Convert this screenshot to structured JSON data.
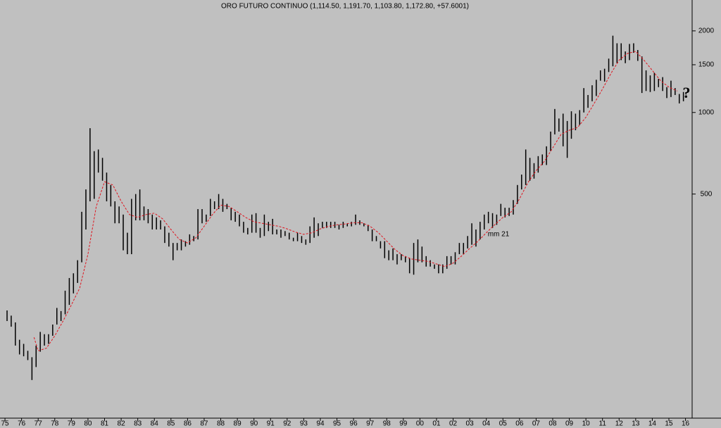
{
  "chart_data": {
    "type": "hilo",
    "title": "ORO FUTURO CONTINUO (1,114.50, 1,191.70, 1,103.80, 1,172.80, +57.6001)",
    "color": "#000000",
    "log_scale": true,
    "x": [
      1975.125,
      1975.375,
      1975.625,
      1975.875,
      1976.125,
      1976.375,
      1976.625,
      1976.875,
      1977.125,
      1977.375,
      1977.625,
      1977.875,
      1978.125,
      1978.375,
      1978.625,
      1978.875,
      1979.125,
      1979.375,
      1979.625,
      1979.875,
      1980.125,
      1980.375,
      1980.625,
      1980.875,
      1981.125,
      1981.375,
      1981.625,
      1981.875,
      1982.125,
      1982.375,
      1982.625,
      1982.875,
      1983.125,
      1983.375,
      1983.625,
      1983.875,
      1984.125,
      1984.375,
      1984.625,
      1984.875,
      1985.125,
      1985.375,
      1985.625,
      1985.875,
      1986.125,
      1986.375,
      1986.625,
      1986.875,
      1987.125,
      1987.375,
      1987.625,
      1987.875,
      1988.125,
      1988.375,
      1988.625,
      1988.875,
      1989.125,
      1989.375,
      1989.625,
      1989.875,
      1990.125,
      1990.375,
      1990.625,
      1990.875,
      1991.125,
      1991.375,
      1991.625,
      1991.875,
      1992.125,
      1992.375,
      1992.625,
      1992.875,
      1993.125,
      1993.375,
      1993.625,
      1993.875,
      1994.125,
      1994.375,
      1994.625,
      1994.875,
      1995.125,
      1995.375,
      1995.625,
      1995.875,
      1996.125,
      1996.375,
      1996.625,
      1996.875,
      1997.125,
      1997.375,
      1997.625,
      1997.875,
      1998.125,
      1998.375,
      1998.625,
      1998.875,
      1999.125,
      1999.375,
      1999.625,
      1999.875,
      2000.125,
      2000.375,
      2000.625,
      2000.875,
      2001.125,
      2001.375,
      2001.625,
      2001.875,
      2002.125,
      2002.375,
      2002.625,
      2002.875,
      2003.125,
      2003.375,
      2003.625,
      2003.875,
      2004.125,
      2004.375,
      2004.625,
      2004.875,
      2005.125,
      2005.375,
      2005.625,
      2005.875,
      2006.125,
      2006.375,
      2006.625,
      2006.875,
      2007.125,
      2007.375,
      2007.625,
      2007.875,
      2008.125,
      2008.375,
      2008.625,
      2008.875,
      2009.125,
      2009.375,
      2009.625,
      2009.875,
      2010.125,
      2010.375,
      2010.625,
      2010.875,
      2011.125,
      2011.375,
      2011.625,
      2011.875,
      2012.125,
      2012.375,
      2012.625,
      2012.875,
      2013.125,
      2013.375,
      2013.625,
      2013.875,
      2014.125,
      2014.375,
      2014.625,
      2014.875,
      2015.125,
      2015.375,
      2015.625,
      2015.875
    ],
    "high": [
      186,
      178,
      168,
      145,
      140,
      132,
      125,
      138,
      155,
      152,
      152,
      165,
      190,
      185,
      220,
      245,
      255,
      285,
      430,
      520,
      875,
      720,
      730,
      680,
      600,
      540,
      470,
      450,
      420,
      360,
      480,
      500,
      520,
      450,
      440,
      420,
      410,
      400,
      380,
      360,
      330,
      330,
      340,
      335,
      355,
      350,
      440,
      440,
      420,
      480,
      470,
      500,
      480,
      460,
      445,
      430,
      420,
      395,
      375,
      420,
      425,
      375,
      420,
      395,
      405,
      370,
      370,
      365,
      360,
      345,
      360,
      350,
      340,
      380,
      410,
      390,
      395,
      395,
      395,
      395,
      385,
      395,
      390,
      395,
      420,
      400,
      390,
      385,
      370,
      350,
      335,
      335,
      310,
      315,
      300,
      300,
      295,
      290,
      330,
      340,
      320,
      295,
      285,
      275,
      275,
      275,
      295,
      295,
      305,
      330,
      330,
      350,
      390,
      370,
      395,
      420,
      430,
      425,
      420,
      460,
      445,
      445,
      475,
      540,
      590,
      730,
      680,
      650,
      690,
      700,
      750,
      850,
      1030,
      950,
      990,
      930,
      1010,
      990,
      1020,
      1230,
      1160,
      1260,
      1320,
      1430,
      1450,
      1580,
      1920,
      1800,
      1800,
      1680,
      1790,
      1800,
      1700,
      1610,
      1430,
      1370,
      1400,
      1330,
      1350,
      1240,
      1310,
      1230,
      1170,
      1190
    ],
    "low": [
      170,
      162,
      138,
      128,
      126,
      122,
      103,
      115,
      131,
      138,
      140,
      150,
      165,
      170,
      180,
      195,
      215,
      235,
      280,
      370,
      470,
      480,
      600,
      560,
      470,
      450,
      390,
      390,
      310,
      300,
      300,
      400,
      400,
      400,
      390,
      370,
      370,
      370,
      330,
      320,
      285,
      310,
      310,
      320,
      325,
      335,
      340,
      390,
      395,
      415,
      440,
      440,
      430,
      440,
      400,
      395,
      380,
      360,
      355,
      360,
      360,
      345,
      350,
      365,
      355,
      355,
      345,
      350,
      340,
      335,
      335,
      330,
      325,
      330,
      345,
      350,
      375,
      375,
      375,
      375,
      370,
      375,
      380,
      380,
      385,
      385,
      380,
      365,
      335,
      335,
      315,
      290,
      285,
      285,
      275,
      285,
      280,
      255,
      252,
      280,
      280,
      270,
      270,
      265,
      255,
      255,
      265,
      275,
      275,
      300,
      300,
      315,
      325,
      320,
      340,
      370,
      390,
      375,
      385,
      415,
      410,
      415,
      420,
      460,
      520,
      540,
      560,
      570,
      600,
      640,
      640,
      720,
      830,
      850,
      750,
      680,
      800,
      860,
      900,
      1000,
      1040,
      1100,
      1150,
      1310,
      1300,
      1410,
      1480,
      1520,
      1560,
      1520,
      1560,
      1660,
      1550,
      1180,
      1200,
      1190,
      1200,
      1240,
      1200,
      1130,
      1140,
      1160,
      1080,
      1100
    ],
    "ma": {
      "name": "mm 21",
      "color": "#e0141e",
      "x": [
        1976.75,
        1977.0,
        1977.5,
        1978.0,
        1978.5,
        1979.0,
        1979.5,
        1980.0,
        1980.5,
        1981.0,
        1981.5,
        1982.0,
        1982.5,
        1983.0,
        1983.5,
        1984.0,
        1984.5,
        1985.0,
        1985.5,
        1986.0,
        1986.5,
        1987.0,
        1987.5,
        1988.0,
        1988.5,
        1989.0,
        1989.5,
        1990.0,
        1990.5,
        1991.0,
        1991.5,
        1992.0,
        1992.5,
        1993.0,
        1993.5,
        1994.0,
        1994.5,
        1995.0,
        1995.5,
        1996.0,
        1996.5,
        1997.0,
        1997.5,
        1998.0,
        1998.5,
        1999.0,
        1999.5,
        2000.0,
        2000.5,
        2001.0,
        2001.5,
        2002.0,
        2002.5,
        2003.0,
        2003.5,
        2004.0,
        2004.5,
        2005.0,
        2005.5,
        2006.0,
        2006.5,
        2007.0,
        2007.5,
        2008.0,
        2008.5,
        2009.0,
        2009.5,
        2010.0,
        2010.5,
        2011.0,
        2011.5,
        2012.0,
        2012.5,
        2013.0,
        2013.5,
        2014.0,
        2014.5,
        2015.0,
        2015.5
      ],
      "values": [
        148,
        132,
        135,
        150,
        170,
        195,
        225,
        300,
        450,
        555,
        540,
        470,
        420,
        410,
        420,
        425,
        405,
        370,
        340,
        330,
        345,
        380,
        420,
        455,
        450,
        430,
        410,
        395,
        390,
        385,
        380,
        372,
        362,
        355,
        360,
        372,
        380,
        385,
        388,
        392,
        392,
        380,
        360,
        335,
        312,
        296,
        288,
        285,
        282,
        276,
        270,
        278,
        295,
        315,
        335,
        360,
        385,
        410,
        430,
        480,
        550,
        610,
        660,
        740,
        830,
        860,
        880,
        960,
        1080,
        1220,
        1390,
        1560,
        1650,
        1680,
        1560,
        1430,
        1310,
        1240,
        1200
      ]
    },
    "annotation": "?",
    "annotation_color": "#0b4a4a",
    "ylim": [
      81,
      2600
    ],
    "yticks": [
      500,
      1000,
      1500,
      2000
    ],
    "xlim": [
      1974.7,
      2016.4
    ],
    "xticks": [
      {
        "value": 1975,
        "label": "75"
      },
      {
        "value": 1976,
        "label": "76"
      },
      {
        "value": 1977,
        "label": "77"
      },
      {
        "value": 1978,
        "label": "78"
      },
      {
        "value": 1979,
        "label": "79"
      },
      {
        "value": 1980,
        "label": "80"
      },
      {
        "value": 1981,
        "label": "81"
      },
      {
        "value": 1982,
        "label": "82"
      },
      {
        "value": 1983,
        "label": "83"
      },
      {
        "value": 1984,
        "label": "84"
      },
      {
        "value": 1985,
        "label": "85"
      },
      {
        "value": 1986,
        "label": "86"
      },
      {
        "value": 1987,
        "label": "87"
      },
      {
        "value": 1988,
        "label": "88"
      },
      {
        "value": 1989,
        "label": "89"
      },
      {
        "value": 1990,
        "label": "90"
      },
      {
        "value": 1991,
        "label": "91"
      },
      {
        "value": 1992,
        "label": "92"
      },
      {
        "value": 1993,
        "label": "93"
      },
      {
        "value": 1994,
        "label": "94"
      },
      {
        "value": 1995,
        "label": "95"
      },
      {
        "value": 1996,
        "label": "96"
      },
      {
        "value": 1997,
        "label": "97"
      },
      {
        "value": 1998,
        "label": "98"
      },
      {
        "value": 1999,
        "label": "99"
      },
      {
        "value": 2000,
        "label": "00"
      },
      {
        "value": 2001,
        "label": "01"
      },
      {
        "value": 2002,
        "label": "02"
      },
      {
        "value": 2003,
        "label": "03"
      },
      {
        "value": 2004,
        "label": "04"
      },
      {
        "value": 2005,
        "label": "05"
      },
      {
        "value": 2006,
        "label": "06"
      },
      {
        "value": 2007,
        "label": "07"
      },
      {
        "value": 2008,
        "label": "08"
      },
      {
        "value": 2009,
        "label": "09"
      },
      {
        "value": 2010,
        "label": "10"
      },
      {
        "value": 2011,
        "label": "11"
      },
      {
        "value": 2012,
        "label": "12"
      },
      {
        "value": 2013,
        "label": "13"
      },
      {
        "value": 2014,
        "label": "14"
      },
      {
        "value": 2015,
        "label": "15"
      },
      {
        "value": 2016,
        "label": "16"
      }
    ]
  }
}
